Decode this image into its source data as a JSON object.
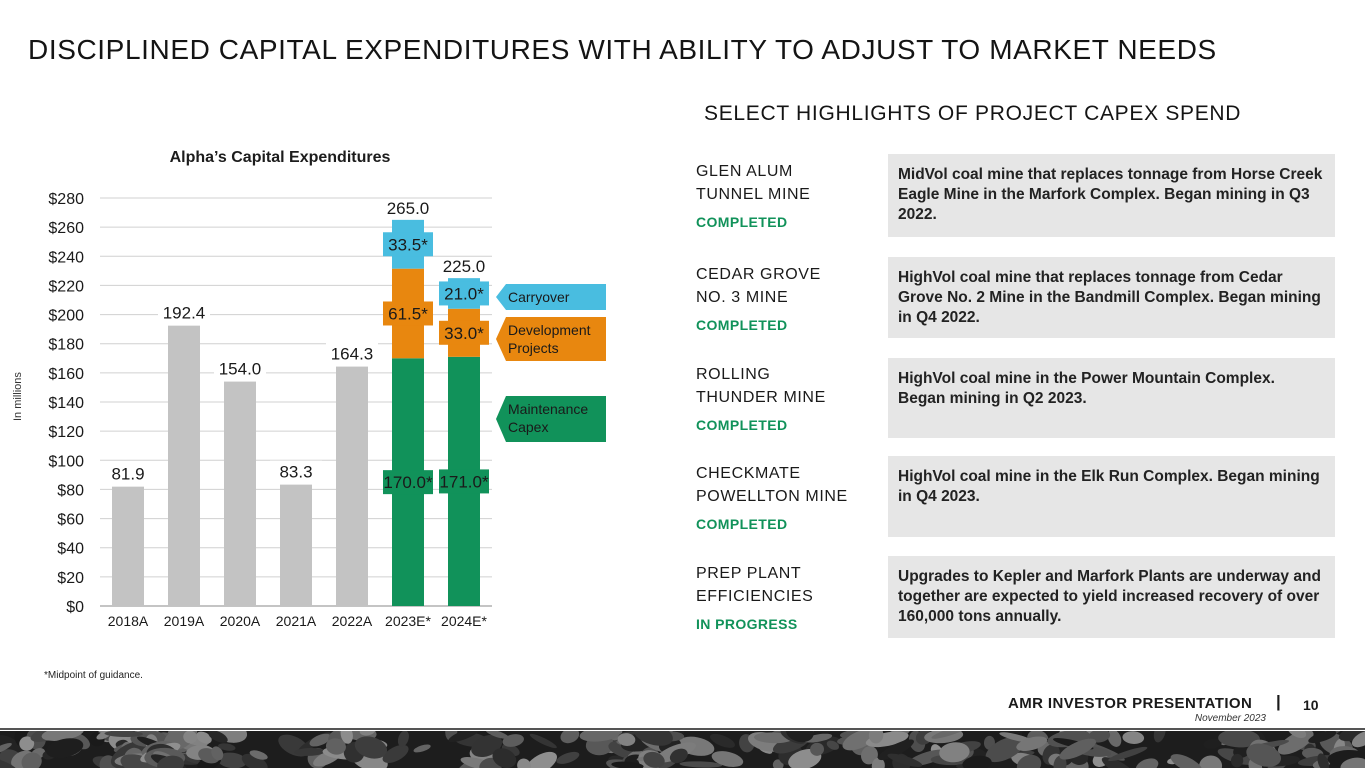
{
  "page": {
    "title": "DISCIPLINED CAPITAL EXPENDITURES WITH ABILITY TO ADJUST TO MARKET NEEDS",
    "footnote": "*Midpoint of guidance."
  },
  "colors": {
    "gray_bar": "#c3c3c3",
    "maintenance": "#11925a",
    "development": "#e8870f",
    "carryover": "#49bde0",
    "status_green": "#11925a"
  },
  "chart_data": {
    "type": "bar",
    "title": "Alpha’s Capital Expenditures",
    "ylabel": "In millions",
    "xlabel": "",
    "ylim": [
      0,
      280
    ],
    "ytick_step": 20,
    "ytick_labels": [
      "$0",
      "$20",
      "$40",
      "$60",
      "$80",
      "$100",
      "$120",
      "$140",
      "$160",
      "$180",
      "$200",
      "$220",
      "$240",
      "$260",
      "$280"
    ],
    "categories": [
      "2018A",
      "2019A",
      "2020A",
      "2021A",
      "2022A",
      "2023E*",
      "2024E*"
    ],
    "actuals": [
      81.9,
      192.4,
      154.0,
      83.3,
      164.3,
      null,
      null
    ],
    "actual_labels": [
      "81.9",
      "192.4",
      "154.0",
      "83.3",
      "164.3",
      "",
      ""
    ],
    "series": [
      {
        "name": "Maintenance Capex",
        "legend": "Maintenance Capex",
        "color": "#11925a",
        "values": [
          null,
          null,
          null,
          null,
          null,
          170.0,
          171.0
        ],
        "labels": [
          "",
          "",
          "",
          "",
          "",
          "170.0*",
          "171.0*"
        ]
      },
      {
        "name": "Development Projects",
        "legend": "Development Projects",
        "color": "#e8870f",
        "values": [
          null,
          null,
          null,
          null,
          null,
          61.5,
          33.0
        ],
        "labels": [
          "",
          "",
          "",
          "",
          "",
          "61.5*",
          "33.0*"
        ]
      },
      {
        "name": "Carryover",
        "legend": "Carryover",
        "color": "#49bde0",
        "values": [
          null,
          null,
          null,
          null,
          null,
          33.5,
          21.0
        ],
        "labels": [
          "",
          "",
          "",
          "",
          "",
          "33.5*",
          "21.0*"
        ]
      }
    ],
    "totals": [
      null,
      null,
      null,
      null,
      null,
      265.0,
      225.0
    ],
    "total_labels": [
      "",
      "",
      "",
      "",
      "",
      "265.0",
      "225.0"
    ],
    "legend_placement": "right"
  },
  "highlights": {
    "title": "SELECT HIGHLIGHTS OF PROJECT CAPEX SPEND",
    "items": [
      {
        "name": "GLEN ALUM\nTUNNEL MINE",
        "status": "COMPLETED",
        "description": "MidVol coal mine that replaces tonnage from Horse Creek Eagle Mine in the Marfork Complex. Began mining in Q3 2022."
      },
      {
        "name": "CEDAR GROVE\nNO. 3 MINE",
        "status": "COMPLETED",
        "description": "HighVol coal mine that replaces tonnage from Cedar Grove No. 2 Mine in the Bandmill Complex. Began mining in Q4 2022."
      },
      {
        "name": "ROLLING\nTHUNDER MINE",
        "status": "COMPLETED",
        "description": "HighVol coal mine in the Power Mountain Complex. Began mining in Q2 2023."
      },
      {
        "name": "CHECKMATE\nPOWELLTON MINE",
        "status": "COMPLETED",
        "description": "HighVol coal mine in the Elk Run Complex. Began mining in Q4 2023."
      },
      {
        "name": "PREP PLANT\nEFFICIENCIES",
        "status": "IN PROGRESS",
        "description": "Upgrades to Kepler and Marfork Plants are underway and together are expected to yield increased recovery of over 160,000 tons annually."
      }
    ]
  },
  "footer": {
    "brand": "AMR INVESTOR PRESENTATION",
    "separator": "|",
    "page_number": "10",
    "date": "November 2023"
  }
}
